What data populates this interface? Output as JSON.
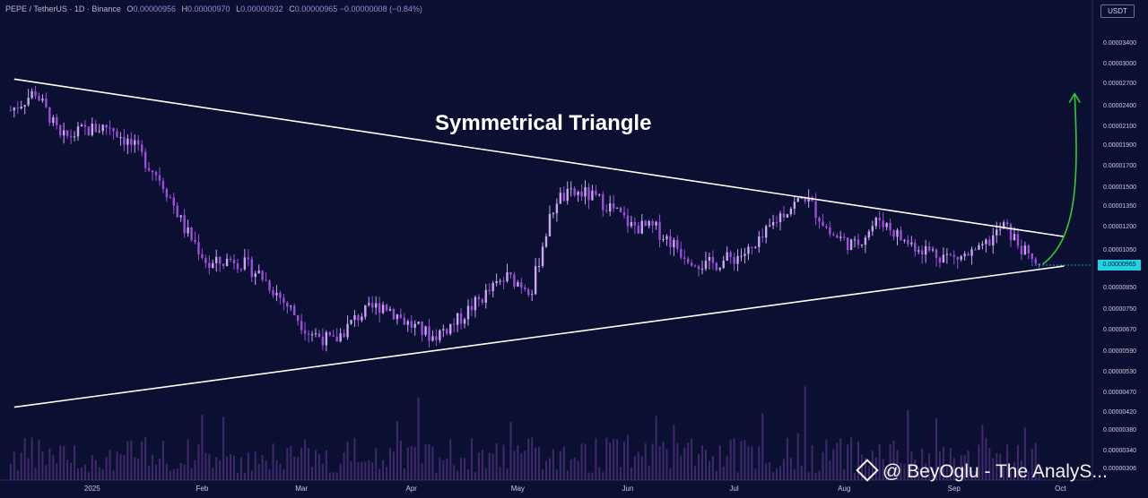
{
  "header": {
    "symbol": "PEPE / TetherUS · 1D · Binance",
    "open_label": "O",
    "open": "0.00000956",
    "high_label": "H",
    "high": "0.00000970",
    "low_label": "L",
    "low": "0.00000932",
    "close_label": "C",
    "close": "0.00000965",
    "change": "−0.00000008 (−0.84%)"
  },
  "currency_button": "USDT",
  "annotation_title": "Symmetrical Triangle",
  "watermark": "@ BeyOglu - The AnalyS...",
  "last_price_label": "0.00000965",
  "colors": {
    "background": "#0b1033",
    "candle": "#b06ae0",
    "trendline": "#ffffff",
    "arrow": "#33cc33",
    "price_tag": "#22d3e6"
  },
  "chart_data": {
    "type": "candlestick",
    "x_labels": [
      "2025",
      "Feb",
      "Mar",
      "Apr",
      "May",
      "Jun",
      "Jul",
      "Aug",
      "Sep",
      "Oct"
    ],
    "y_tick_labels": [
      "0.00003400",
      "0.00003000",
      "0.00002700",
      "0.00002400",
      "0.00002100",
      "0.00001900",
      "0.00001700",
      "0.00001500",
      "0.00001350",
      "0.00001200",
      "0.00001050",
      "0.00000965",
      "0.00000850",
      "0.00000750",
      "0.00000670",
      "0.00000590",
      "0.00000530",
      "0.00000470",
      "0.00000420",
      "0.00000380",
      "0.00000340",
      "0.00000306"
    ],
    "close_series": [
      {
        "t": "2024-12-09",
        "v": 2.32e-05
      },
      {
        "t": "2024-12-16",
        "v": 2.58e-05
      },
      {
        "t": "2024-12-23",
        "v": 1.95e-05
      },
      {
        "t": "2024-12-30",
        "v": 2.05e-05
      },
      {
        "t": "2025-01-06",
        "v": 2.1e-05
      },
      {
        "t": "2025-01-13",
        "v": 1.86e-05
      },
      {
        "t": "2025-01-20",
        "v": 1.58e-05
      },
      {
        "t": "2025-01-27",
        "v": 1.18e-05
      },
      {
        "t": "2025-02-03",
        "v": 9.6e-06
      },
      {
        "t": "2025-02-10",
        "v": 1e-05
      },
      {
        "t": "2025-02-17",
        "v": 9.2e-06
      },
      {
        "t": "2025-02-24",
        "v": 7.8e-06
      },
      {
        "t": "2025-03-03",
        "v": 6.6e-06
      },
      {
        "t": "2025-03-10",
        "v": 6.2e-06
      },
      {
        "t": "2025-03-17",
        "v": 7.2e-06
      },
      {
        "t": "2025-03-24",
        "v": 7.7e-06
      },
      {
        "t": "2025-03-31",
        "v": 6.9e-06
      },
      {
        "t": "2025-04-07",
        "v": 6.4e-06
      },
      {
        "t": "2025-04-14",
        "v": 7e-06
      },
      {
        "t": "2025-04-21",
        "v": 8e-06
      },
      {
        "t": "2025-04-28",
        "v": 9e-06
      },
      {
        "t": "2025-05-05",
        "v": 8.4e-06
      },
      {
        "t": "2025-05-12",
        "v": 1.4e-05
      },
      {
        "t": "2025-05-19",
        "v": 1.45e-05
      },
      {
        "t": "2025-05-26",
        "v": 1.36e-05
      },
      {
        "t": "2025-06-02",
        "v": 1.2e-05
      },
      {
        "t": "2025-06-09",
        "v": 1.18e-05
      },
      {
        "t": "2025-06-16",
        "v": 1.04e-05
      },
      {
        "t": "2025-06-23",
        "v": 9.6e-06
      },
      {
        "t": "2025-06-30",
        "v": 1e-05
      },
      {
        "t": "2025-07-07",
        "v": 1.05e-05
      },
      {
        "t": "2025-07-14",
        "v": 1.28e-05
      },
      {
        "t": "2025-07-21",
        "v": 1.42e-05
      },
      {
        "t": "2025-07-28",
        "v": 1.15e-05
      },
      {
        "t": "2025-08-04",
        "v": 1.07e-05
      },
      {
        "t": "2025-08-11",
        "v": 1.25e-05
      },
      {
        "t": "2025-08-18",
        "v": 1.1e-05
      },
      {
        "t": "2025-08-25",
        "v": 1.04e-05
      },
      {
        "t": "2025-09-01",
        "v": 1e-05
      },
      {
        "t": "2025-09-08",
        "v": 1.03e-05
      },
      {
        "t": "2025-09-15",
        "v": 1.2e-05
      },
      {
        "t": "2025-09-22",
        "v": 1e-05
      },
      {
        "t": "2025-09-25",
        "v": 9.65e-06
      }
    ],
    "trendlines": [
      {
        "name": "upper",
        "from": {
          "t": "2024-12-10",
          "v": 2.75e-05
        },
        "to": {
          "t": "2025-10-02",
          "v": 1.13e-05
        }
      },
      {
        "name": "lower",
        "from": {
          "t": "2024-12-10",
          "v": 4.3e-06
        },
        "to": {
          "t": "2025-10-02",
          "v": 9.6e-06
        }
      }
    ],
    "arrow": {
      "from": {
        "t": "2025-09-26",
        "v": 9.7e-06
      },
      "to": {
        "t": "2025-10-05",
        "v": 2.55e-05
      }
    }
  }
}
